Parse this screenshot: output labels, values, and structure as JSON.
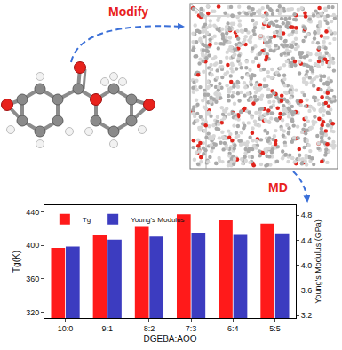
{
  "chart_data": {
    "type": "bar",
    "annotations": [
      "Modify",
      "MD"
    ],
    "categories": [
      "10:0",
      "9:1",
      "8:2",
      "7:3",
      "6:4",
      "5:5"
    ],
    "x_label": "DGEBA:AOO",
    "y_label": "Tg(K)",
    "y2_label": "Young's Modulus (GPa)",
    "series": [
      {
        "name": "Tg",
        "color": "#ff1a1a",
        "values": [
          397,
          413,
          423,
          437,
          430,
          426
        ]
      },
      {
        "name": "Young's Modulus",
        "color": "#3c3cc0",
        "axis": "y2",
        "values": [
          4.3,
          4.41,
          4.46,
          4.52,
          4.5,
          4.51
        ]
      }
    ],
    "ylim": [
      313,
      448
    ],
    "yticks": [
      320,
      360,
      400,
      440
    ],
    "y2lim": [
      3.16,
      4.96
    ],
    "y2ticks": [
      3.2,
      3.6,
      {
        "value": 4,
        "label": "4.0"
      },
      4.4,
      4.8
    ],
    "legend": "top left",
    "grid": false
  }
}
